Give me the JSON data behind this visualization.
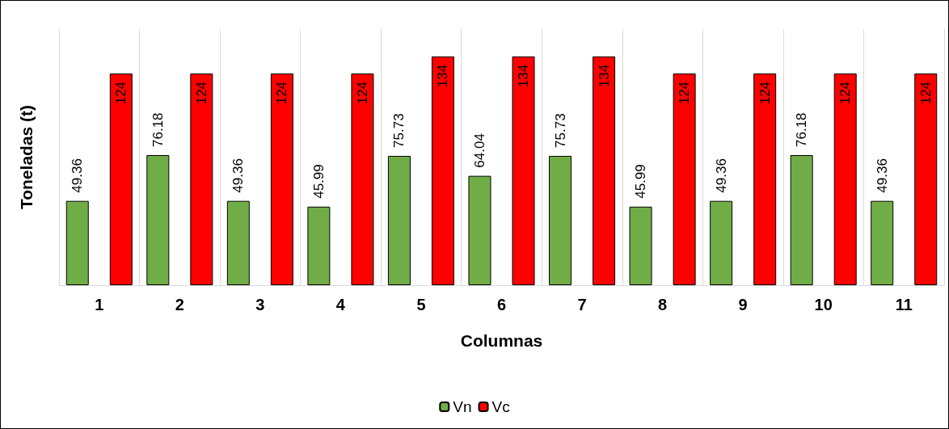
{
  "chart_data": {
    "type": "bar",
    "xlabel": "Columnas",
    "ylabel": "Toneladas (t)",
    "categories": [
      "1",
      "2",
      "3",
      "4",
      "5",
      "6",
      "7",
      "8",
      "9",
      "10",
      "11"
    ],
    "series": [
      {
        "name": "Vn",
        "color": "#70ad47",
        "values": [
          49.36,
          76.18,
          49.36,
          45.99,
          75.73,
          64.04,
          75.73,
          45.99,
          49.36,
          76.18,
          49.36
        ]
      },
      {
        "name": "Vc",
        "color": "#ff0000",
        "values": [
          124,
          124,
          124,
          124,
          134,
          134,
          134,
          124,
          124,
          124,
          124
        ]
      }
    ],
    "data_labels": true,
    "grid": "x",
    "legend": "bottom",
    "tick_labels": "x"
  }
}
